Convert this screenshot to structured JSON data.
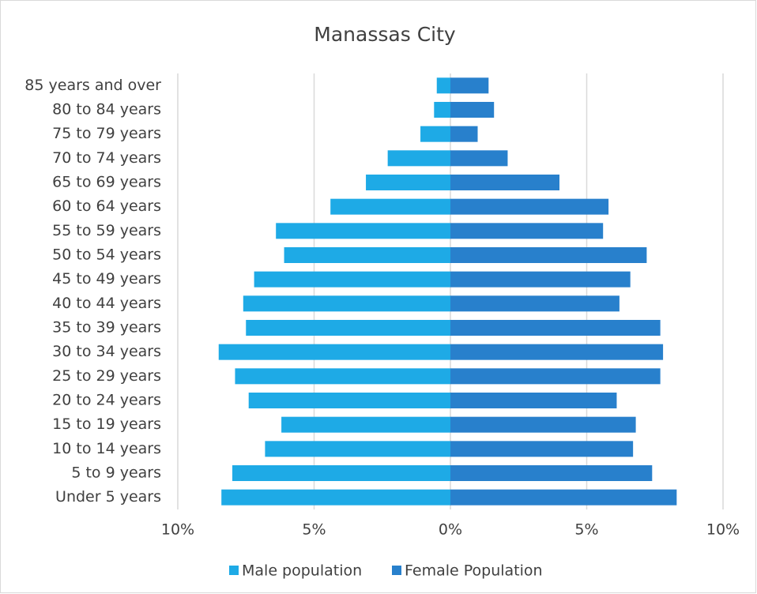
{
  "chart_data": {
    "type": "bar",
    "orientation": "horizontal",
    "title": "Manassas City",
    "categories": [
      "85 years and over",
      "80 to 84 years",
      "75 to 79 years",
      "70 to 74 years",
      "65 to 69 years",
      "60 to 64 years",
      "55 to 59 years",
      "50 to 54 years",
      "45 to 49 years",
      "40 to 44 years",
      "35 to 39 years",
      "30 to 34 years",
      "25 to 29 years",
      "20 to 24 years",
      "15 to 19 years",
      "10 to 14 years",
      "5 to 9 years",
      "Under 5 years"
    ],
    "series": [
      {
        "name": "Male population",
        "color": "#1eaae6",
        "values": [
          -0.5,
          -0.6,
          -1.1,
          -2.3,
          -3.1,
          -4.4,
          -6.4,
          -6.1,
          -7.2,
          -7.6,
          -7.5,
          -8.5,
          -7.9,
          -7.4,
          -6.2,
          -6.8,
          -8.0,
          -8.4
        ]
      },
      {
        "name": "Female Population",
        "color": "#2880cc",
        "values": [
          1.4,
          1.6,
          1.0,
          2.1,
          4.0,
          5.8,
          5.6,
          7.2,
          6.6,
          6.2,
          7.7,
          7.8,
          7.7,
          6.1,
          6.8,
          6.7,
          7.4,
          8.3
        ]
      }
    ],
    "xlim": [
      -10,
      10
    ],
    "xticks": [
      {
        "value": -10,
        "label": "10%"
      },
      {
        "value": -5,
        "label": "5%"
      },
      {
        "value": 0,
        "label": "0%"
      },
      {
        "value": 5,
        "label": "5%"
      },
      {
        "value": 10,
        "label": "10%"
      }
    ],
    "grid": true,
    "legend": "bottom"
  }
}
